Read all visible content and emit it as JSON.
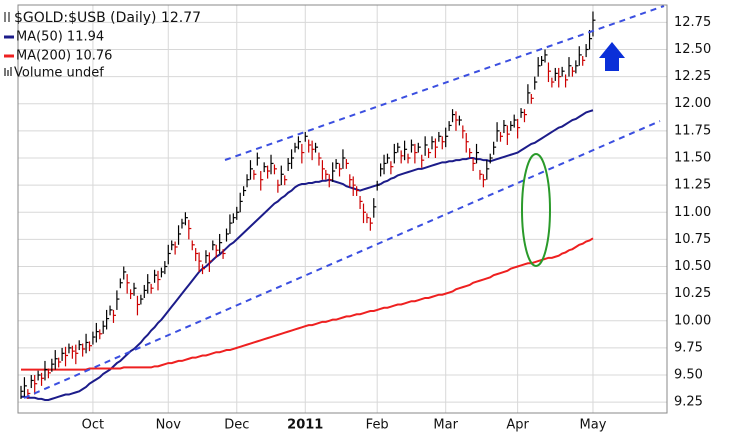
{
  "chart_data": {
    "type": "hlc",
    "title": "$GOLD:$USB (Daily) 12.77",
    "volume_label": "Volume undef",
    "up_color": "#000000",
    "down_color": "#cc0000",
    "ylim": [
      9.15,
      12.91
    ],
    "yticks": [
      9.25,
      {
        "value": 9.5,
        "label": "9.50"
      },
      9.75,
      {
        "value": 10,
        "label": "10.00"
      },
      10.25,
      {
        "value": 10.5,
        "label": "10.50"
      },
      10.75,
      {
        "value": 11,
        "label": "11.00"
      },
      11.25,
      {
        "value": 11.5,
        "label": "11.50"
      },
      11.75,
      {
        "value": 12,
        "label": "12.00"
      },
      12.25,
      {
        "value": 12.5,
        "label": "12.50"
      },
      12.75
    ],
    "grid": true,
    "categories": [
      null,
      null,
      null,
      null,
      null,
      null,
      null,
      null,
      null,
      null,
      null,
      null,
      null,
      null,
      null,
      null,
      null,
      null,
      null,
      null,
      null,
      "Oct",
      null,
      null,
      null,
      null,
      null,
      null,
      null,
      null,
      null,
      null,
      null,
      null,
      null,
      null,
      null,
      null,
      null,
      null,
      null,
      null,
      null,
      "Nov",
      null,
      null,
      null,
      null,
      null,
      null,
      null,
      null,
      null,
      null,
      null,
      null,
      null,
      null,
      null,
      null,
      null,
      null,
      null,
      "Dec",
      null,
      null,
      null,
      null,
      null,
      null,
      null,
      null,
      null,
      null,
      null,
      null,
      null,
      null,
      null,
      null,
      null,
      null,
      null,
      "2011",
      null,
      null,
      null,
      null,
      null,
      null,
      null,
      null,
      null,
      null,
      null,
      null,
      null,
      null,
      null,
      null,
      null,
      null,
      null,
      null,
      "Feb",
      null,
      null,
      null,
      null,
      null,
      null,
      null,
      null,
      null,
      null,
      null,
      null,
      null,
      null,
      null,
      null,
      null,
      null,
      null,
      "Mar",
      null,
      null,
      null,
      null,
      null,
      null,
      null,
      null,
      null,
      null,
      null,
      null,
      null,
      null,
      null,
      null,
      null,
      null,
      null,
      null,
      "Apr",
      null,
      null,
      null,
      null,
      null,
      null,
      null,
      null,
      null,
      null,
      null,
      null,
      null,
      null,
      null,
      null,
      null,
      null,
      null,
      null,
      null,
      "May"
    ],
    "close": [
      9.35,
      9.4,
      9.33,
      9.45,
      9.42,
      9.5,
      9.47,
      9.55,
      9.52,
      9.6,
      9.65,
      9.62,
      9.7,
      9.68,
      9.75,
      9.72,
      9.7,
      9.78,
      9.74,
      9.8,
      9.77,
      9.85,
      9.9,
      9.88,
      9.95,
      10.02,
      10.1,
      10.05,
      10.2,
      10.35,
      10.45,
      10.35,
      10.25,
      10.3,
      10.15,
      10.2,
      10.28,
      10.35,
      10.3,
      10.42,
      10.38,
      10.45,
      10.5,
      10.62,
      10.7,
      10.68,
      10.8,
      10.9,
      10.95,
      10.85,
      10.7,
      10.62,
      10.55,
      10.48,
      10.6,
      10.55,
      10.7,
      10.65,
      10.72,
      10.62,
      10.8,
      10.9,
      10.95,
      11.0,
      11.1,
      11.2,
      11.3,
      11.4,
      11.35,
      11.5,
      11.3,
      11.42,
      11.38,
      11.45,
      11.4,
      11.25,
      11.35,
      11.3,
      11.45,
      11.5,
      11.6,
      11.65,
      11.55,
      11.7,
      11.62,
      11.58,
      11.6,
      11.5,
      11.4,
      11.35,
      11.3,
      11.38,
      11.45,
      11.4,
      11.5,
      11.45,
      11.3,
      11.25,
      11.2,
      11.1,
      11.0,
      10.95,
      10.9,
      11.05,
      11.25,
      11.4,
      11.45,
      11.5,
      11.42,
      11.55,
      11.6,
      11.52,
      11.58,
      11.5,
      11.62,
      11.55,
      11.6,
      11.48,
      11.62,
      11.55,
      11.65,
      11.6,
      11.7,
      11.65,
      11.7,
      11.8,
      11.9,
      11.85,
      11.85,
      11.75,
      11.65,
      11.55,
      11.45,
      11.55,
      11.35,
      11.3,
      11.4,
      11.5,
      11.6,
      11.75,
      11.7,
      11.8,
      11.72,
      11.8,
      11.85,
      11.78,
      11.92,
      11.9,
      12.1,
      12.05,
      12.2,
      12.35,
      12.4,
      12.45,
      12.3,
      12.2,
      12.28,
      12.25,
      12.3,
      12.22,
      12.35,
      12.3,
      12.35,
      12.45,
      12.4,
      12.5,
      12.6,
      12.77
    ],
    "high": [
      9.4,
      9.48,
      9.37,
      9.5,
      9.5,
      9.54,
      9.52,
      9.63,
      9.56,
      9.65,
      9.73,
      9.66,
      9.75,
      9.76,
      9.79,
      9.77,
      9.78,
      9.82,
      9.79,
      9.88,
      9.81,
      9.9,
      9.98,
      9.92,
      10.0,
      10.1,
      10.14,
      10.1,
      10.28,
      10.39,
      10.5,
      10.43,
      10.29,
      10.35,
      10.23,
      10.24,
      10.33,
      10.43,
      10.34,
      10.47,
      10.46,
      10.49,
      10.55,
      10.7,
      10.74,
      10.73,
      10.88,
      10.94,
      11.0,
      10.93,
      10.74,
      10.67,
      10.63,
      10.52,
      10.65,
      10.63,
      10.74,
      10.7,
      10.8,
      10.66,
      10.85,
      10.98,
      10.99,
      11.05,
      11.18,
      11.24,
      11.35,
      11.48,
      11.39,
      11.55,
      11.38,
      11.46,
      11.43,
      11.53,
      11.44,
      11.3,
      11.43,
      11.34,
      11.5,
      11.58,
      11.64,
      11.7,
      11.63,
      11.74,
      11.67,
      11.66,
      11.64,
      11.55,
      11.48,
      11.39,
      11.35,
      11.46,
      11.49,
      11.45,
      11.58,
      11.49,
      11.35,
      11.33,
      11.24,
      11.15,
      11.08,
      10.99,
      10.95,
      11.13,
      11.29,
      11.45,
      11.53,
      11.54,
      11.47,
      11.63,
      11.64,
      11.57,
      11.66,
      11.54,
      11.67,
      11.63,
      11.64,
      11.53,
      11.7,
      11.59,
      11.7,
      11.68,
      11.74,
      11.7,
      11.78,
      11.84,
      11.95,
      11.93,
      11.89,
      11.8,
      11.73,
      11.59,
      11.5,
      11.63,
      11.39,
      11.35,
      11.48,
      11.54,
      11.65,
      11.83,
      11.74,
      11.85,
      11.8,
      11.84,
      11.9,
      11.86,
      11.96,
      11.95,
      12.18,
      12.09,
      12.25,
      12.43,
      12.44,
      12.5,
      12.38,
      12.24,
      12.33,
      12.33,
      12.34,
      12.27,
      12.43,
      12.34,
      12.4,
      12.53,
      12.44,
      12.55,
      12.68,
      12.85
    ],
    "low": [
      9.28,
      9.3,
      9.28,
      9.38,
      9.32,
      9.45,
      9.4,
      9.45,
      9.47,
      9.53,
      9.55,
      9.57,
      9.63,
      9.58,
      9.7,
      9.65,
      9.6,
      9.73,
      9.67,
      9.7,
      9.72,
      9.78,
      9.8,
      9.83,
      9.88,
      9.92,
      10.05,
      9.98,
      10.1,
      10.3,
      10.38,
      10.25,
      10.2,
      10.23,
      10.05,
      10.15,
      10.21,
      10.25,
      10.25,
      10.35,
      10.28,
      10.4,
      10.43,
      10.52,
      10.65,
      10.61,
      10.7,
      10.85,
      10.88,
      10.75,
      10.65,
      10.55,
      10.45,
      10.43,
      10.53,
      10.45,
      10.65,
      10.58,
      10.62,
      10.57,
      10.73,
      10.8,
      10.9,
      10.93,
      11.0,
      11.15,
      11.23,
      11.3,
      11.3,
      11.43,
      11.2,
      11.37,
      11.31,
      11.35,
      11.35,
      11.18,
      11.25,
      11.25,
      11.38,
      11.4,
      11.55,
      11.58,
      11.45,
      11.65,
      11.55,
      11.48,
      11.55,
      11.43,
      11.3,
      11.3,
      11.23,
      11.28,
      11.4,
      11.33,
      11.4,
      11.4,
      11.23,
      11.15,
      11.15,
      11.03,
      10.9,
      10.9,
      10.83,
      10.95,
      11.2,
      11.33,
      11.35,
      11.45,
      11.35,
      11.45,
      11.55,
      11.45,
      11.48,
      11.45,
      11.55,
      11.45,
      11.55,
      11.41,
      11.52,
      11.5,
      11.58,
      11.5,
      11.65,
      11.58,
      11.6,
      11.75,
      11.83,
      11.75,
      11.8,
      11.68,
      11.55,
      11.5,
      11.38,
      11.45,
      11.3,
      11.23,
      11.3,
      11.45,
      11.53,
      11.65,
      11.65,
      11.73,
      11.62,
      11.75,
      11.78,
      11.68,
      11.87,
      11.83,
      12.0,
      12.0,
      12.13,
      12.25,
      12.35,
      12.38,
      12.2,
      12.15,
      12.21,
      12.15,
      12.25,
      12.15,
      12.25,
      12.25,
      12.28,
      12.35,
      12.35,
      12.43,
      12.5,
      12.62
    ],
    "series": [
      {
        "name": "MA(50) 11.94",
        "color": "#1c1c8a",
        "values": [
          9.3,
          9.3,
          9.29,
          9.29,
          9.29,
          9.28,
          9.28,
          9.27,
          9.27,
          9.28,
          9.29,
          9.3,
          9.31,
          9.32,
          9.32,
          9.33,
          9.34,
          9.35,
          9.37,
          9.39,
          9.42,
          9.44,
          9.46,
          9.48,
          9.51,
          9.53,
          9.55,
          9.58,
          9.61,
          9.63,
          9.66,
          9.69,
          9.72,
          9.74,
          9.77,
          9.8,
          9.84,
          9.87,
          9.91,
          9.94,
          9.98,
          10.01,
          10.05,
          10.09,
          10.13,
          10.17,
          10.21,
          10.25,
          10.29,
          10.33,
          10.37,
          10.41,
          10.45,
          10.48,
          10.5,
          10.53,
          10.56,
          10.59,
          10.61,
          10.64,
          10.67,
          10.7,
          10.72,
          10.75,
          10.78,
          10.81,
          10.84,
          10.87,
          10.9,
          10.93,
          10.96,
          10.99,
          11.02,
          11.05,
          11.08,
          11.1,
          11.13,
          11.15,
          11.18,
          11.2,
          11.23,
          11.25,
          11.26,
          11.26,
          11.27,
          11.27,
          11.28,
          11.28,
          11.29,
          11.29,
          11.3,
          11.29,
          11.28,
          11.27,
          11.26,
          11.24,
          11.23,
          11.22,
          11.21,
          11.2,
          11.21,
          11.22,
          11.23,
          11.24,
          11.25,
          11.26,
          11.28,
          11.29,
          11.31,
          11.32,
          11.34,
          11.35,
          11.36,
          11.37,
          11.38,
          11.39,
          11.4,
          11.4,
          11.41,
          11.42,
          11.43,
          11.44,
          11.45,
          11.46,
          11.46,
          11.47,
          11.47,
          11.48,
          11.48,
          11.49,
          11.49,
          11.5,
          11.5,
          11.49,
          11.49,
          11.48,
          11.48,
          11.47,
          11.48,
          11.49,
          11.5,
          11.51,
          11.52,
          11.53,
          11.54,
          11.55,
          11.57,
          11.59,
          11.61,
          11.63,
          11.64,
          11.66,
          11.68,
          11.7,
          11.72,
          11.74,
          11.76,
          11.78,
          11.79,
          11.81,
          11.83,
          11.85,
          11.86,
          11.88,
          11.9,
          11.92,
          11.93,
          11.94
        ]
      },
      {
        "name": "MA(200) 10.76",
        "color": "#ee2020",
        "values": [
          9.55,
          9.55,
          9.55,
          9.55,
          9.55,
          9.55,
          9.55,
          9.55,
          9.55,
          9.55,
          9.55,
          9.55,
          9.55,
          9.55,
          9.55,
          9.55,
          9.55,
          9.55,
          9.55,
          9.55,
          9.56,
          9.56,
          9.56,
          9.56,
          9.56,
          9.56,
          9.56,
          9.56,
          9.56,
          9.56,
          9.57,
          9.57,
          9.57,
          9.57,
          9.57,
          9.57,
          9.57,
          9.57,
          9.57,
          9.58,
          9.58,
          9.59,
          9.6,
          9.61,
          9.61,
          9.62,
          9.63,
          9.63,
          9.64,
          9.65,
          9.66,
          9.66,
          9.67,
          9.68,
          9.68,
          9.69,
          9.7,
          9.71,
          9.71,
          9.72,
          9.73,
          9.73,
          9.74,
          9.75,
          9.76,
          9.77,
          9.78,
          9.79,
          9.8,
          9.81,
          9.82,
          9.83,
          9.84,
          9.85,
          9.86,
          9.87,
          9.88,
          9.89,
          9.9,
          9.91,
          9.92,
          9.93,
          9.94,
          9.95,
          9.96,
          9.96,
          9.97,
          9.98,
          9.99,
          9.99,
          10.0,
          10.01,
          10.01,
          10.02,
          10.03,
          10.04,
          10.04,
          10.05,
          10.06,
          10.06,
          10.07,
          10.08,
          10.09,
          10.09,
          10.1,
          10.11,
          10.12,
          10.12,
          10.13,
          10.14,
          10.15,
          10.15,
          10.16,
          10.17,
          10.18,
          10.18,
          10.19,
          10.2,
          10.21,
          10.21,
          10.22,
          10.23,
          10.24,
          10.24,
          10.25,
          10.26,
          10.27,
          10.29,
          10.3,
          10.31,
          10.32,
          10.33,
          10.35,
          10.36,
          10.37,
          10.38,
          10.39,
          10.4,
          10.42,
          10.43,
          10.44,
          10.45,
          10.46,
          10.48,
          10.49,
          10.5,
          10.51,
          10.52,
          10.53,
          10.53,
          10.54,
          10.55,
          10.56,
          10.57,
          10.58,
          10.58,
          10.59,
          10.6,
          10.62,
          10.63,
          10.65,
          10.66,
          10.68,
          10.7,
          10.71,
          10.73,
          10.74,
          10.76
        ]
      }
    ]
  }
}
